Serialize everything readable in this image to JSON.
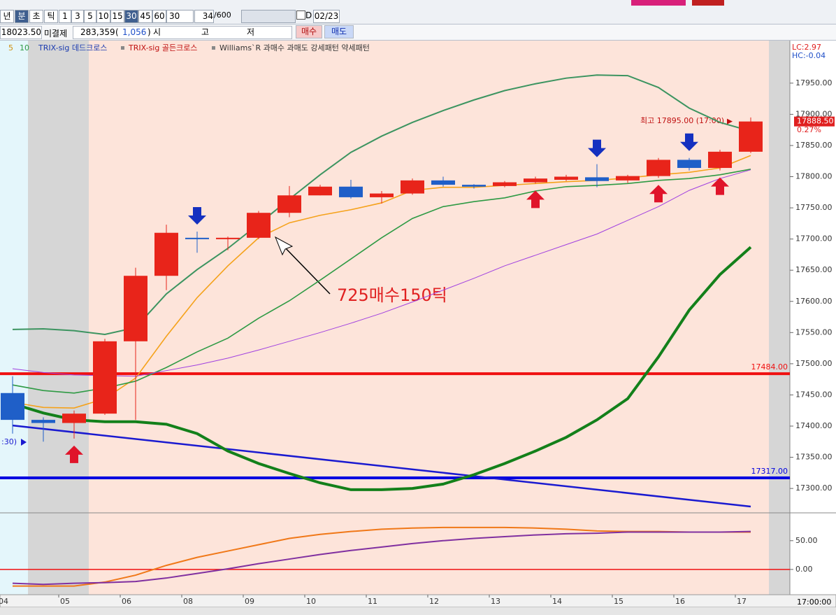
{
  "toolbar": {
    "periods": [
      "년",
      "분",
      "초",
      "틱"
    ],
    "intervals": [
      "1",
      "3",
      "5",
      "10",
      "15",
      "30",
      "45",
      "60"
    ],
    "count": "30",
    "bars": "34",
    "max_bars": "/600",
    "d": "D",
    "date": "02/23"
  },
  "quote": {
    "price": "18023.50",
    "oi_label": "미결제",
    "oi": "283,359",
    "oi_open": "(",
    "oi_change": "1,056",
    "oi_close": ")",
    "open": "시",
    "high": "고",
    "low": "저",
    "buy": "매수",
    "sell": "매도"
  },
  "legend": {
    "ma5": "5",
    "ma10": "10",
    "trix_dead": "TRIX-sig 데드크로스",
    "trix_golden": "TRIX-sig 골든크로스",
    "rest": "Williams`R 과매수 과매도 강세패턴  약세패턴"
  },
  "chart_data": [
    {
      "type": "candlestick",
      "categories": [
        "04",
        null,
        "05",
        null,
        "06",
        null,
        "08",
        null,
        "09",
        null,
        "10",
        null,
        "11",
        null,
        "12",
        null,
        "13",
        null,
        "14",
        null,
        "15",
        null,
        "16",
        null,
        "17"
      ],
      "open": [
        17453,
        17410,
        17405,
        17420,
        17536,
        17641,
        17702,
        17700,
        17702,
        17742,
        17770,
        17784,
        17767,
        17773,
        17794,
        17787,
        17785,
        17791,
        17795,
        17799,
        17794,
        17801,
        17827,
        17814,
        17840
      ],
      "high": [
        17480,
        17414,
        17425,
        17540,
        17654,
        17723,
        17712,
        17704,
        17745,
        17785,
        17787,
        17795,
        17777,
        17797,
        17800,
        17788,
        17793,
        17800,
        17803,
        17820,
        17803,
        17830,
        17830,
        17843,
        17895
      ],
      "low": [
        17388,
        17375,
        17380,
        17418,
        17410,
        17618,
        17678,
        17682,
        17700,
        17735,
        17770,
        17765,
        17757,
        17771,
        17784,
        17781,
        17783,
        17789,
        17793,
        17783,
        17790,
        17798,
        17810,
        17810,
        17838
      ],
      "close": [
        17410,
        17405,
        17420,
        17536,
        17641,
        17710,
        17700,
        17702,
        17742,
        17770,
        17784,
        17767,
        17773,
        17794,
        17787,
        17784,
        17791,
        17797,
        17800,
        17793,
        17801,
        17827,
        17814,
        17840,
        17888.5
      ],
      "series": [
        {
          "color": "#f5a21b",
          "values": [
            17438,
            17430,
            17429,
            17444,
            17477,
            17544,
            17606,
            17657,
            17702,
            17726,
            17738,
            17747,
            17758,
            17778,
            17783,
            17783,
            17786,
            17789,
            17792,
            17794,
            17798,
            17803,
            17807,
            17814,
            17834
          ]
        },
        {
          "color": "#2e9a44",
          "values": [
            17466,
            17457,
            17453,
            17461,
            17472,
            17494,
            17519,
            17541,
            17573,
            17601,
            17634,
            17668,
            17702,
            17733,
            17752,
            17760,
            17766,
            17777,
            17784,
            17786,
            17789,
            17794,
            17797,
            17803,
            17812
          ]
        },
        {
          "color": "#3c9460",
          "values": [
            17555,
            17556,
            17553,
            17547,
            17558,
            17612,
            17651,
            17685,
            17724,
            17764,
            17803,
            17839,
            17865,
            17887,
            17906,
            17923,
            17938,
            17949,
            17958,
            17963,
            17962,
            17943,
            17910,
            17887,
            17873
          ]
        },
        {
          "color": "#a040e0",
          "values": [
            17492,
            17486,
            17482,
            17481,
            17480,
            17489,
            17498,
            17509,
            17522,
            17536,
            17550,
            17565,
            17581,
            17599,
            17618,
            17637,
            17657,
            17674,
            17691,
            17708,
            17730,
            17752,
            17778,
            17797,
            17811
          ]
        },
        {
          "color": "#13801a",
          "values": [
            17436,
            17421,
            17410,
            17407,
            17407,
            17403,
            17388,
            17360,
            17340,
            17324,
            17309,
            17298,
            17298,
            17300,
            17307,
            17322,
            17340,
            17360,
            17382,
            17410,
            17444,
            17511,
            17586,
            17643,
            17687
          ]
        }
      ],
      "trendline": {
        "color": "#1a1ad0",
        "values": [
          17401,
          17271
        ]
      },
      "hlines": [
        {
          "value": 17484,
          "label": "17484.00",
          "color": "#f01010"
        },
        {
          "value": 17317,
          "label": "17317.00",
          "color": "#0000e0"
        }
      ],
      "ylim": [
        17262,
        18016
      ],
      "yticks": [
        {
          "value": 17300,
          "label": "17300.00"
        },
        {
          "value": 17350,
          "label": "17350.00"
        },
        {
          "value": 17400,
          "label": "17400.00"
        },
        {
          "value": 17450,
          "label": "17450.00"
        },
        {
          "value": 17500,
          "label": "17500.00"
        },
        {
          "value": 17550,
          "label": "17550.00"
        },
        {
          "value": 17600,
          "label": "17600.00"
        },
        {
          "value": 17650,
          "label": "17650.00"
        },
        {
          "value": 17700,
          "label": "17700.00"
        },
        {
          "value": 17750,
          "label": "17750.00"
        },
        {
          "value": 17800,
          "label": "17800.00"
        },
        {
          "value": 17850,
          "label": "17850.00"
        },
        {
          "value": 17900,
          "label": "17900.00"
        },
        {
          "value": 17950,
          "label": "17950.00"
        }
      ],
      "last_price": {
        "value": 17888.5,
        "label": "17888.50"
      },
      "change": "0.27%",
      "high_note": "최고 17895.00 (17:00)",
      "lc": "LC:2.97",
      "hc": "HC:-0.04",
      "annotation": "725매수150틱",
      "left_note": ":30)",
      "x_cursor": "17:00:00"
    },
    {
      "type": "line",
      "series": [
        {
          "color": "#f07818",
          "values": [
            -29,
            -29,
            -29,
            -22,
            -10,
            7,
            21,
            32,
            43,
            54,
            61,
            66,
            70,
            72,
            73,
            73,
            73,
            72,
            70,
            67,
            66,
            66,
            65,
            65,
            65
          ]
        },
        {
          "color": "#8030a0",
          "values": [
            -24,
            -26,
            -24,
            -23,
            -21,
            -15,
            -7,
            1,
            10,
            18,
            26,
            33,
            39,
            45,
            50,
            54,
            57,
            60,
            62,
            63,
            65,
            65,
            65,
            65,
            66
          ]
        }
      ],
      "hlines": [
        {
          "value": 0,
          "color": "#f01010"
        }
      ],
      "ylim": [
        -44,
        96
      ],
      "yticks": [
        {
          "value": 50,
          "label": "50.00"
        },
        {
          "value": 0,
          "label": "0.00"
        }
      ]
    }
  ]
}
